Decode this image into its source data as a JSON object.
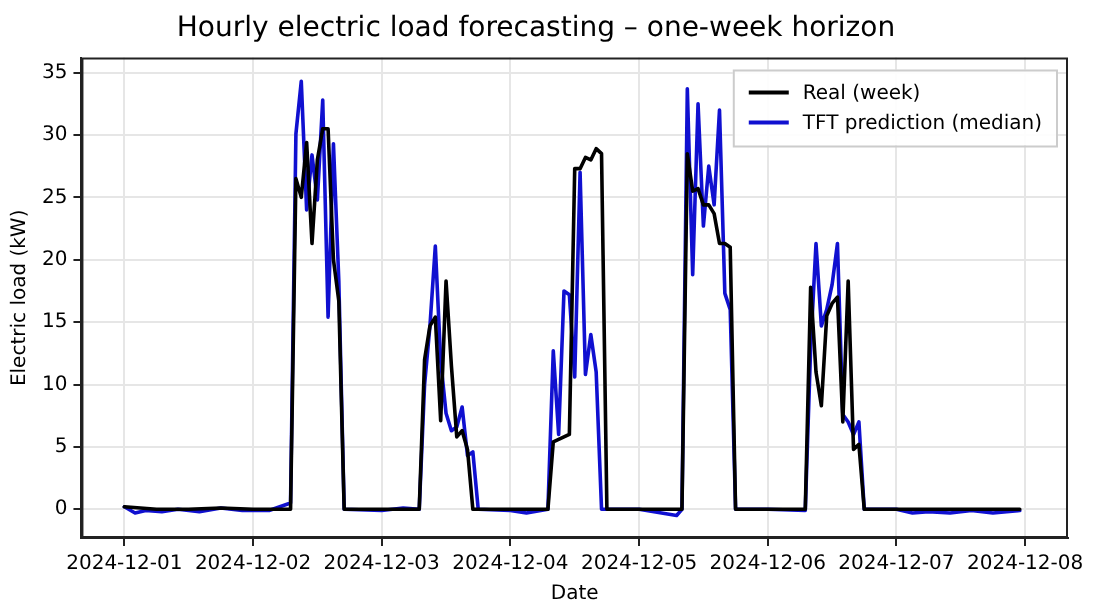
{
  "chart_data": {
    "type": "line",
    "title": "Hourly electric load forecasting – one-week horizon",
    "xlabel": "Date",
    "ylabel": "Electric load (kW)",
    "xlim": [
      "2024-11-30T16:00",
      "2024-12-08T08:00"
    ],
    "xticks": [
      "2024-12-01",
      "2024-12-02",
      "2024-12-03",
      "2024-12-04",
      "2024-12-05",
      "2024-12-06",
      "2024-12-07",
      "2024-12-08"
    ],
    "ylim": [
      -2.3,
      36.2
    ],
    "yticks": [
      0,
      5,
      10,
      15,
      20,
      25,
      30,
      35
    ],
    "grid": true,
    "legend": "top right",
    "marker": "none",
    "line_style": "solid",
    "series": [
      {
        "name": "Real (week)",
        "color": "#000000",
        "x": [
          "2024-12-01T00:00",
          "2024-12-01T06:00",
          "2024-12-01T12:00",
          "2024-12-01T18:00",
          "2024-12-02T00:00",
          "2024-12-02T07:00",
          "2024-12-02T08:00",
          "2024-12-02T09:00",
          "2024-12-02T10:00",
          "2024-12-02T11:00",
          "2024-12-02T12:00",
          "2024-12-02T13:00",
          "2024-12-02T14:00",
          "2024-12-02T15:00",
          "2024-12-02T16:00",
          "2024-12-02T17:00",
          "2024-12-03T00:00",
          "2024-12-03T07:00",
          "2024-12-03T08:00",
          "2024-12-03T09:00",
          "2024-12-03T10:00",
          "2024-12-03T11:00",
          "2024-12-03T12:00",
          "2024-12-03T13:00",
          "2024-12-03T14:00",
          "2024-12-03T15:00",
          "2024-12-03T16:00",
          "2024-12-03T17:00",
          "2024-12-04T00:00",
          "2024-12-04T07:00",
          "2024-12-04T08:00",
          "2024-12-04T09:00",
          "2024-12-04T10:00",
          "2024-12-04T11:00",
          "2024-12-04T12:00",
          "2024-12-04T13:00",
          "2024-12-04T14:00",
          "2024-12-04T15:00",
          "2024-12-04T16:00",
          "2024-12-04T17:00",
          "2024-12-04T18:00",
          "2024-12-05T00:00",
          "2024-12-05T08:00",
          "2024-12-05T09:00",
          "2024-12-05T10:00",
          "2024-12-05T11:00",
          "2024-12-05T12:00",
          "2024-12-05T13:00",
          "2024-12-05T14:00",
          "2024-12-05T15:00",
          "2024-12-05T16:00",
          "2024-12-05T17:00",
          "2024-12-05T18:00",
          "2024-12-06T00:00",
          "2024-12-06T07:00",
          "2024-12-06T08:00",
          "2024-12-06T09:00",
          "2024-12-06T10:00",
          "2024-12-06T11:00",
          "2024-12-06T12:00",
          "2024-12-06T13:00",
          "2024-12-06T14:00",
          "2024-12-06T15:00",
          "2024-12-06T16:00",
          "2024-12-06T17:00",
          "2024-12-06T18:00",
          "2024-12-07T00:00",
          "2024-12-07T12:00",
          "2024-12-07T23:00"
        ],
        "values": [
          0.2,
          0,
          0,
          0.1,
          0,
          0,
          26.5,
          25,
          29.4,
          21.3,
          28,
          30.5,
          30.5,
          20,
          16.7,
          0,
          0,
          0,
          12,
          14.7,
          15.4,
          7.1,
          18.3,
          11.5,
          5.8,
          6.3,
          4.8,
          0,
          0,
          0,
          5.4,
          5.6,
          5.8,
          6,
          27.3,
          27.3,
          28.2,
          28,
          28.9,
          28.5,
          0,
          0,
          0,
          28.5,
          25.5,
          25.7,
          24.4,
          24.4,
          23.7,
          21.3,
          21.3,
          21,
          0,
          0,
          0,
          17.8,
          11,
          8.3,
          15.5,
          16.5,
          17,
          7,
          18.3,
          4.8,
          5.2,
          0,
          0,
          0,
          0
        ]
      },
      {
        "name": "TFT prediction (median)",
        "color": "#1010d0",
        "x": [
          "2024-12-01T00:00",
          "2024-12-01T02:00",
          "2024-12-01T04:00",
          "2024-12-01T07:00",
          "2024-12-01T10:00",
          "2024-12-01T14:00",
          "2024-12-01T18:00",
          "2024-12-01T22:00",
          "2024-12-02T03:00",
          "2024-12-02T07:00",
          "2024-12-02T08:00",
          "2024-12-02T09:00",
          "2024-12-02T10:00",
          "2024-12-02T11:00",
          "2024-12-02T12:00",
          "2024-12-02T13:00",
          "2024-12-02T14:00",
          "2024-12-02T15:00",
          "2024-12-02T16:00",
          "2024-12-02T17:00",
          "2024-12-03T00:00",
          "2024-12-03T04:00",
          "2024-12-03T07:00",
          "2024-12-03T08:00",
          "2024-12-03T09:00",
          "2024-12-03T10:00",
          "2024-12-03T11:00",
          "2024-12-03T12:00",
          "2024-12-03T13:00",
          "2024-12-03T14:00",
          "2024-12-03T15:00",
          "2024-12-03T16:00",
          "2024-12-03T17:00",
          "2024-12-03T18:00",
          "2024-12-04T00:00",
          "2024-12-04T03:00",
          "2024-12-04T07:00",
          "2024-12-04T08:00",
          "2024-12-04T09:00",
          "2024-12-04T10:00",
          "2024-12-04T11:00",
          "2024-12-04T12:00",
          "2024-12-04T13:00",
          "2024-12-04T14:00",
          "2024-12-04T15:00",
          "2024-12-04T16:00",
          "2024-12-04T17:00",
          "2024-12-05T00:00",
          "2024-12-05T07:00",
          "2024-12-05T08:00",
          "2024-12-05T09:00",
          "2024-12-05T10:00",
          "2024-12-05T11:00",
          "2024-12-05T12:00",
          "2024-12-05T13:00",
          "2024-12-05T14:00",
          "2024-12-05T15:00",
          "2024-12-05T16:00",
          "2024-12-05T17:00",
          "2024-12-05T18:00",
          "2024-12-06T00:00",
          "2024-12-06T07:00",
          "2024-12-06T08:00",
          "2024-12-06T09:00",
          "2024-12-06T10:00",
          "2024-12-06T11:00",
          "2024-12-06T12:00",
          "2024-12-06T13:00",
          "2024-12-06T14:00",
          "2024-12-06T15:00",
          "2024-12-06T16:00",
          "2024-12-06T17:00",
          "2024-12-06T18:00",
          "2024-12-07T00:00",
          "2024-12-07T03:00",
          "2024-12-07T06:00",
          "2024-12-07T10:00",
          "2024-12-07T14:00",
          "2024-12-07T18:00",
          "2024-12-07T23:00"
        ],
        "values": [
          0.2,
          -0.3,
          -0.1,
          -0.2,
          0,
          -0.2,
          0.1,
          -0.1,
          -0.1,
          0.5,
          30.1,
          34.3,
          24,
          28.4,
          24.8,
          32.8,
          15.4,
          29.3,
          18.3,
          0,
          -0.1,
          0.1,
          0,
          10,
          14.7,
          21.1,
          11.9,
          7.7,
          6.3,
          6.6,
          8.2,
          4.3,
          4.6,
          0,
          -0.1,
          -0.3,
          0,
          12.7,
          6,
          17.5,
          17.2,
          10.6,
          27,
          10.8,
          14,
          11,
          0,
          0,
          -0.5,
          0,
          33.7,
          18.8,
          32.5,
          22.7,
          27.5,
          24.4,
          32,
          17.3,
          16,
          0,
          0,
          -0.1,
          13,
          21.3,
          14.7,
          16,
          18,
          21.3,
          7.6,
          7,
          6,
          7,
          0,
          0,
          -0.3,
          -0.2,
          -0.3,
          -0.1,
          -0.3,
          -0.1
        ]
      }
    ]
  }
}
